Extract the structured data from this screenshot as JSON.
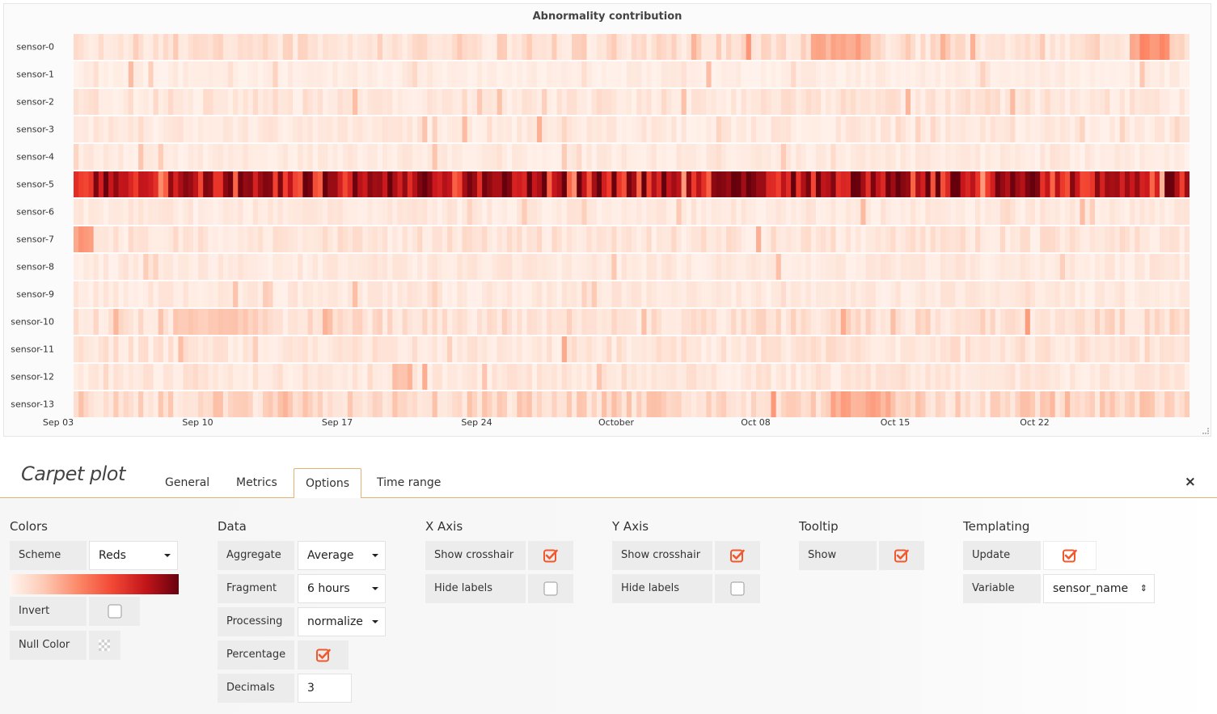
{
  "chart_data": {
    "type": "heatmap",
    "title": "Abnormality contribution",
    "y_categories": [
      "sensor-0",
      "sensor-1",
      "sensor-2",
      "sensor-3",
      "sensor-4",
      "sensor-5",
      "sensor-6",
      "sensor-7",
      "sensor-8",
      "sensor-9",
      "sensor-10",
      "sensor-11",
      "sensor-12",
      "sensor-13"
    ],
    "x_tick_labels": [
      "Sep 03",
      "Sep 10",
      "Sep 17",
      "Sep 24",
      "October",
      "Oct 08",
      "Oct 15",
      "Oct 22"
    ],
    "x_start": "Sep 03",
    "days": 56,
    "fragments_per_day": 4,
    "color_scheme": "Reds",
    "row_mean_intensity": [
      0.12,
      0.05,
      0.09,
      0.07,
      0.06,
      0.78,
      0.07,
      0.09,
      0.07,
      0.07,
      0.11,
      0.09,
      0.08,
      0.14
    ],
    "hotspots": [
      {
        "row": 0,
        "day_from": 37,
        "day_to": 40,
        "level": 0.35
      },
      {
        "row": 0,
        "day_from": 53,
        "day_to": 55,
        "level": 0.4
      },
      {
        "row": 5,
        "day_from": 14,
        "day_to": 18,
        "level": 0.95
      },
      {
        "row": 5,
        "day_from": 33,
        "day_to": 35,
        "level": 0.95
      },
      {
        "row": 5,
        "day_from": 40,
        "day_to": 42,
        "level": 0.97
      },
      {
        "row": 5,
        "day_from": 46,
        "day_to": 48,
        "level": 0.92
      },
      {
        "row": 7,
        "day_from": 0,
        "day_to": 1,
        "level": 0.4
      },
      {
        "row": 10,
        "day_from": 5,
        "day_to": 9,
        "level": 0.22
      },
      {
        "row": 12,
        "day_from": 16,
        "day_to": 17,
        "level": 0.28
      },
      {
        "row": 13,
        "day_from": 38,
        "day_to": 41,
        "level": 0.35
      }
    ]
  },
  "editor": {
    "title": "Carpet plot",
    "tabs": [
      "General",
      "Metrics",
      "Options",
      "Time range"
    ],
    "active_tab": "Options",
    "close_symbol": "×"
  },
  "colors": {
    "heading": "Colors",
    "scheme_label": "Scheme",
    "scheme_value": "Reds",
    "invert_label": "Invert",
    "invert_checked": false,
    "null_color_label": "Null Color"
  },
  "data_section": {
    "heading": "Data",
    "aggregate_label": "Aggregate",
    "aggregate_value": "Average",
    "fragment_label": "Fragment",
    "fragment_value": "6 hours",
    "processing_label": "Processing",
    "processing_value": "normalize",
    "percentage_label": "Percentage",
    "percentage_checked": true,
    "decimals_label": "Decimals",
    "decimals_value": "3"
  },
  "x_axis": {
    "heading": "X Axis",
    "crosshair_label": "Show crosshair",
    "crosshair_checked": true,
    "hide_labels_label": "Hide labels",
    "hide_labels_checked": false
  },
  "y_axis": {
    "heading": "Y Axis",
    "crosshair_label": "Show crosshair",
    "crosshair_checked": true,
    "hide_labels_label": "Hide labels",
    "hide_labels_checked": false
  },
  "tooltip": {
    "heading": "Tooltip",
    "show_label": "Show",
    "show_checked": true
  },
  "templating": {
    "heading": "Templating",
    "update_label": "Update",
    "update_checked": true,
    "variable_label": "Variable",
    "variable_value": "sensor_name"
  },
  "theme": {
    "accent": "#f0582d",
    "tab_border": "#e3b274"
  }
}
